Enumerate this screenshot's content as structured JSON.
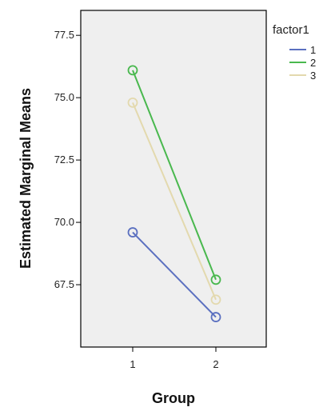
{
  "chart_data": {
    "type": "line",
    "title": "",
    "xlabel": "Group",
    "ylabel": "Estimated Marginal Means",
    "categories": [
      "1",
      "2"
    ],
    "ylim": [
      65.0,
      78.5
    ],
    "y_ticks": [
      67.5,
      70.0,
      72.5,
      75.0,
      77.5
    ],
    "y_tick_labels": [
      "67.5",
      "70.0",
      "72.5",
      "75.0",
      "77.5"
    ],
    "grid": false,
    "legend_title": "factor1",
    "legend_position": "right",
    "series": [
      {
        "name": "1",
        "color": "#5b70c0",
        "values": [
          69.6,
          66.2
        ]
      },
      {
        "name": "2",
        "color": "#49b84e",
        "values": [
          76.1,
          67.7
        ]
      },
      {
        "name": "3",
        "color": "#e3d9ae",
        "values": [
          74.8,
          66.9
        ]
      }
    ],
    "plot_background": "#efefef",
    "marker": "open-circle"
  }
}
